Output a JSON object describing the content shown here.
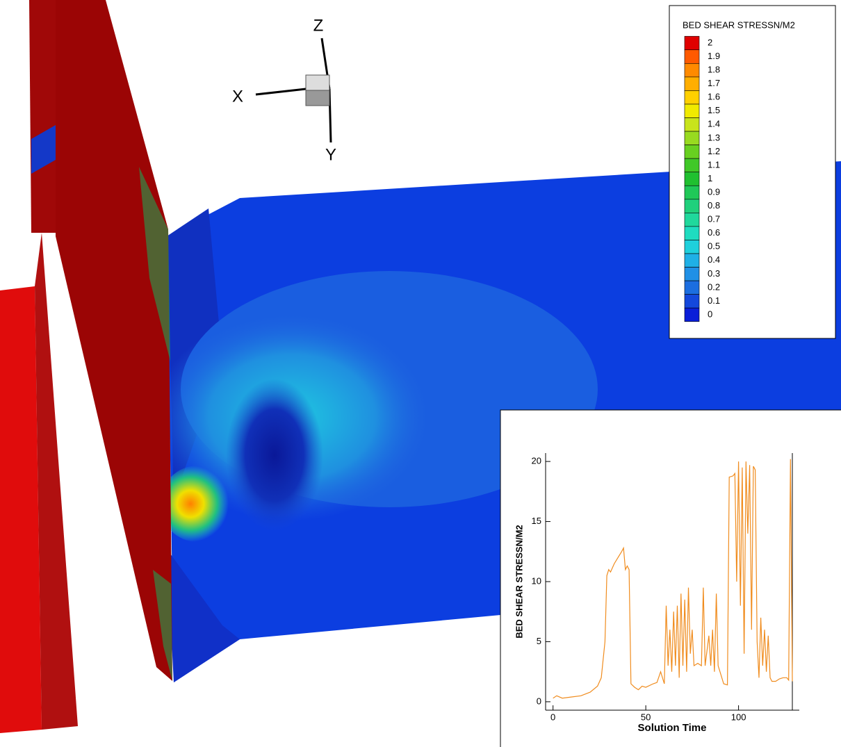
{
  "axes_triad": {
    "x": "X",
    "y": "Y",
    "z": "Z"
  },
  "legend": {
    "title": "BED SHEAR STRESSN/M2",
    "levels": [
      2,
      1.9,
      1.8,
      1.7,
      1.6,
      1.5,
      1.4,
      1.3,
      1.2,
      1.1,
      1,
      0.9,
      0.8,
      0.7,
      0.6,
      0.5,
      0.4,
      0.3,
      0.2,
      0.1,
      0
    ],
    "colors": [
      "#e00000",
      "#ff5a00",
      "#ff8a00",
      "#ffae00",
      "#ffd000",
      "#f0ea00",
      "#c8e41c",
      "#98da20",
      "#68d020",
      "#40c828",
      "#20c030",
      "#20c858",
      "#20d07c",
      "#20d89c",
      "#1fdcc0",
      "#1fd0dc",
      "#1fb0e6",
      "#2090e6",
      "#1c6ee0",
      "#1448dc",
      "#0a1ed8"
    ]
  },
  "chart_data": {
    "type": "line",
    "xlabel": "Solution Time",
    "ylabel": "BED SHEAR STRESSN/M2",
    "color": "#f08c1e",
    "xlim": [
      -4,
      129
    ],
    "ylim": [
      -0.7,
      20.7
    ],
    "xticks": [
      0,
      50,
      100
    ],
    "yticks": [
      0,
      5,
      10,
      15,
      20
    ],
    "x": [
      0,
      2,
      5,
      10,
      15,
      20,
      24,
      26,
      28,
      29,
      30,
      31,
      33,
      35,
      37,
      38,
      39,
      40,
      41,
      42,
      44,
      46,
      48,
      50,
      54,
      56,
      58,
      60,
      61,
      62,
      63,
      64,
      65,
      66,
      67,
      68,
      69,
      70,
      71,
      72,
      73,
      74,
      75,
      76,
      78,
      80,
      81,
      82,
      84,
      85,
      86,
      87,
      88,
      89,
      90,
      92,
      94,
      95,
      97,
      98,
      99,
      100,
      101,
      102,
      103,
      104,
      105,
      106,
      107,
      108,
      109,
      110,
      111,
      112,
      113,
      114,
      115,
      116,
      117,
      118,
      120,
      122,
      124,
      126,
      127,
      128,
      129
    ],
    "values": [
      0.3,
      0.5,
      0.3,
      0.4,
      0.5,
      0.8,
      1.3,
      2,
      5,
      10.5,
      11,
      10.8,
      11.5,
      12,
      12.5,
      12.8,
      11,
      11.3,
      11,
      1.5,
      1.2,
      1.0,
      1.3,
      1.2,
      1.5,
      1.6,
      2.5,
      1.5,
      8,
      3,
      6,
      2.5,
      7.5,
      3,
      8,
      2,
      9,
      3,
      8.5,
      2.5,
      9.5,
      4,
      6,
      3,
      3.2,
      3,
      9.5,
      3,
      5.5,
      3,
      6,
      2.5,
      9,
      3,
      2.5,
      1.5,
      1.4,
      18.7,
      18.8,
      19,
      10,
      20,
      8,
      19.5,
      4,
      20,
      14,
      19.7,
      6,
      19.6,
      19.3,
      5,
      2,
      7,
      3,
      6,
      2.5,
      5.5,
      2,
      1.7,
      1.7,
      1.9,
      2,
      2,
      1.8,
      20.2,
      1.7
    ]
  }
}
